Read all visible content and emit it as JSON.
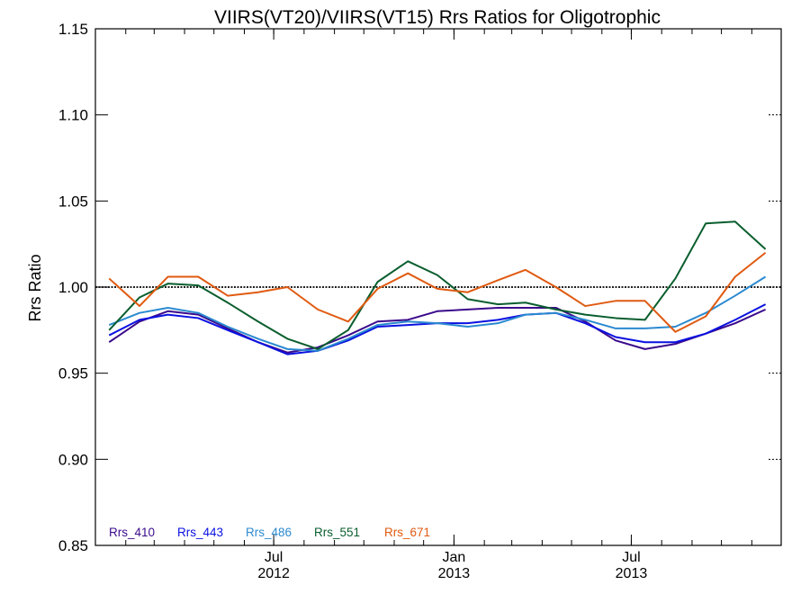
{
  "chart_data": {
    "type": "line",
    "title": "VIIRS(VT20)/VIIRS(VT15)  Rrs Ratios for Oligotrophic",
    "xlabel": "",
    "ylabel": "Rrs Ratio",
    "ylim": [
      0.85,
      1.15
    ],
    "yticks": [
      "0.85",
      "0.90",
      "0.95",
      "1.00",
      "1.05",
      "1.10",
      "1.15"
    ],
    "xticks": [
      {
        "date": "2012-07-01",
        "month": "Jul",
        "year": "2012"
      },
      {
        "date": "2013-01-01",
        "month": "Jan",
        "year": "2013"
      },
      {
        "date": "2013-07-01",
        "month": "Jul",
        "year": "2013"
      }
    ],
    "reference_line": 1.0,
    "legend_position": "bottom-left",
    "x": [
      "2012-01",
      "2012-02",
      "2012-03",
      "2012-04",
      "2012-05",
      "2012-06",
      "2012-07",
      "2012-08",
      "2012-09",
      "2012-10",
      "2012-11",
      "2012-12",
      "2013-01",
      "2013-02",
      "2013-03",
      "2013-04",
      "2013-05",
      "2013-06",
      "2013-07",
      "2013-08",
      "2013-09",
      "2013-10",
      "2013-11"
    ],
    "series": [
      {
        "name": "Rrs_410",
        "color": "#3b0a8c",
        "values": [
          0.968,
          0.98,
          0.986,
          0.984,
          0.976,
          0.968,
          0.962,
          0.965,
          0.972,
          0.98,
          0.981,
          0.986,
          0.987,
          0.988,
          0.988,
          0.988,
          0.98,
          0.969,
          0.964,
          0.967,
          0.973,
          0.979,
          0.987
        ]
      },
      {
        "name": "Rrs_443",
        "color": "#0a10e0",
        "values": [
          0.972,
          0.981,
          0.984,
          0.982,
          0.975,
          0.968,
          0.961,
          0.963,
          0.969,
          0.977,
          0.978,
          0.979,
          0.979,
          0.981,
          0.984,
          0.985,
          0.979,
          0.971,
          0.968,
          0.968,
          0.973,
          0.981,
          0.99
        ]
      },
      {
        "name": "Rrs_486",
        "color": "#2b8ad0",
        "values": [
          0.978,
          0.985,
          0.988,
          0.985,
          0.977,
          0.97,
          0.964,
          0.963,
          0.97,
          0.978,
          0.98,
          0.979,
          0.977,
          0.979,
          0.984,
          0.985,
          0.981,
          0.976,
          0.976,
          0.977,
          0.985,
          0.995,
          1.006
        ]
      },
      {
        "name": "Rrs_551",
        "color": "#0a5e2e",
        "values": [
          0.975,
          0.994,
          1.002,
          1.001,
          0.991,
          0.98,
          0.97,
          0.964,
          0.975,
          1.003,
          1.015,
          1.007,
          0.993,
          0.99,
          0.991,
          0.987,
          0.984,
          0.982,
          0.981,
          1.005,
          1.037,
          1.038,
          1.022
        ]
      },
      {
        "name": "Rrs_671",
        "color": "#e05a10",
        "values": [
          1.005,
          0.989,
          1.006,
          1.006,
          0.995,
          0.997,
          1.0,
          0.987,
          0.98,
          0.999,
          1.008,
          0.999,
          0.997,
          1.004,
          1.01,
          1.0,
          0.989,
          0.992,
          0.992,
          0.974,
          0.983,
          1.006,
          1.02
        ]
      }
    ]
  }
}
